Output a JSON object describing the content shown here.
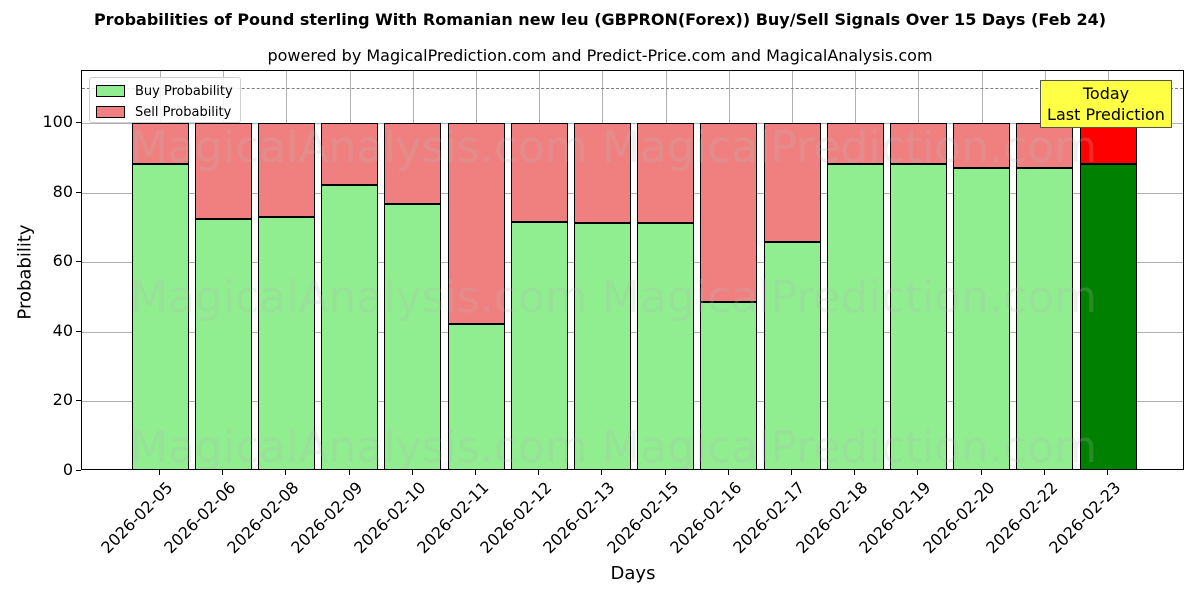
{
  "title": "Probabilities of Pound sterling With Romanian new leu (GBPRON(Forex)) Buy/Sell Signals Over 15 Days (Feb 24)",
  "subtitle": "powered by MagicalPrediction.com and Predict-Price.com and MagicalAnalysis.com",
  "legend": {
    "buy_label": "Buy Probability",
    "sell_label": "Sell Probability"
  },
  "annotation": {
    "line1": "Today",
    "line2": "Last Prediction"
  },
  "watermarks": [
    "MagicalAnalysis.com",
    "MagicalPrediction.com"
  ],
  "colors": {
    "buy": "#90ee90",
    "sell": "#f08080",
    "today_buy": "#008000",
    "today_sell": "#ff0000",
    "annotation_bg": "#ffff44",
    "refline": "#808080"
  },
  "chart_data": {
    "type": "bar",
    "stacked": true,
    "title": "Probabilities of Pound sterling With Romanian new leu (GBPRON(Forex)) Buy/Sell Signals Over 15 Days (Feb 24)",
    "subtitle": "powered by MagicalPrediction.com and Predict-Price.com and MagicalAnalysis.com",
    "xlabel": "Days",
    "ylabel": "Probability",
    "ylim": [
      0,
      115
    ],
    "yticks": [
      0,
      20,
      40,
      60,
      80,
      100
    ],
    "grid": true,
    "legend_position": "upper left",
    "reference_line": {
      "y": 110,
      "style": "dashed",
      "color": "#808080"
    },
    "categories": [
      "2026-02-05",
      "2026-02-06",
      "2026-02-08",
      "2026-02-09",
      "2026-02-10",
      "2026-02-11",
      "2026-02-12",
      "2026-02-13",
      "2026-02-15",
      "2026-02-16",
      "2026-02-17",
      "2026-02-18",
      "2026-02-19",
      "2026-02-20",
      "2026-02-22",
      "2026-02-23"
    ],
    "series": [
      {
        "name": "Buy Probability",
        "values": [
          88.4,
          72.5,
          73.1,
          82.1,
          76.9,
          42.2,
          71.7,
          71.4,
          71.4,
          48.6,
          65.9,
          88.4,
          88.4,
          87.0,
          87.0,
          88.4
        ]
      },
      {
        "name": "Sell Probability",
        "values": [
          11.6,
          27.5,
          26.9,
          17.9,
          23.1,
          57.8,
          28.3,
          28.6,
          28.6,
          51.4,
          34.1,
          11.6,
          11.6,
          13.0,
          13.0,
          11.6
        ]
      }
    ],
    "highlight": {
      "category": "2026-02-23",
      "label": "Today\nLast Prediction",
      "buy_color": "#008000",
      "sell_color": "#ff0000"
    }
  }
}
